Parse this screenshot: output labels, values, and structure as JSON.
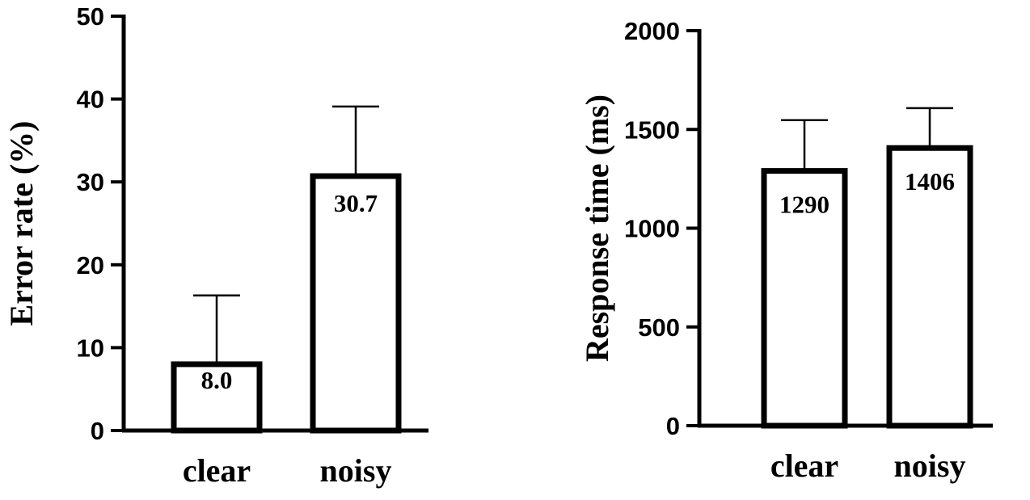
{
  "chart_data": [
    {
      "type": "bar",
      "categories": [
        "clear",
        "noisy"
      ],
      "values": [
        8.0,
        30.7
      ],
      "value_labels": [
        "8.0",
        "30.7"
      ],
      "error_upper": [
        16.3,
        39.1
      ],
      "ylabel": "Error rate (%)",
      "ylim": [
        0,
        50
      ],
      "yticks": [
        0,
        10,
        20,
        30,
        40,
        50
      ]
    },
    {
      "type": "bar",
      "categories": [
        "clear",
        "noisy"
      ],
      "values": [
        1290,
        1406
      ],
      "value_labels": [
        "1290",
        "1406"
      ],
      "error_upper": [
        1547,
        1608
      ],
      "ylabel": "Response time (ms)",
      "ylim": [
        0,
        2000
      ],
      "yticks": [
        0,
        500,
        1000,
        1500,
        2000
      ]
    }
  ]
}
